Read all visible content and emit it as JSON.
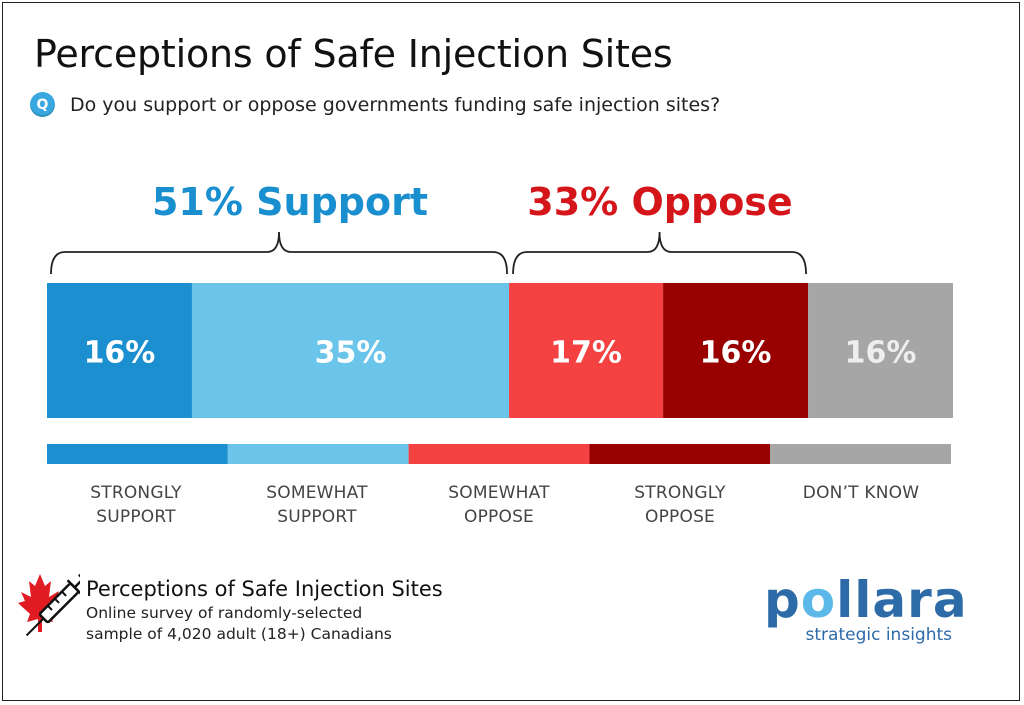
{
  "header": {
    "title": "Perceptions of Safe Injection Sites",
    "question_badge": "Q",
    "question": "Do you support or oppose governments funding safe injection sites?"
  },
  "summary": {
    "support": "51% Support",
    "oppose": "33% Oppose"
  },
  "colors": {
    "strongly_support": "#1b8fd0",
    "somewhat_support": "#6bc4ea",
    "somewhat_oppose": "#f44141",
    "strongly_oppose": "#990000",
    "dont_know": "#a6a6a6",
    "support_text": "#1a8fcf",
    "oppose_text": "#d4161b"
  },
  "chart_data": {
    "type": "bar",
    "orientation": "horizontal-stacked",
    "title": "Perceptions of Safe Injection Sites",
    "categories": [
      "STRONGLY SUPPORT",
      "SOMEWHAT SUPPORT",
      "SOMEWHAT OPPOSE",
      "STRONGLY OPPOSE",
      "DON'T KNOW"
    ],
    "values": [
      16,
      35,
      17,
      16,
      16
    ],
    "data_labels": [
      "16%",
      "35%",
      "17%",
      "16%",
      "16%"
    ],
    "legend": [
      {
        "line1": "STRONGLY",
        "line2": "SUPPORT"
      },
      {
        "line1": "SOMEWHAT",
        "line2": "SUPPORT"
      },
      {
        "line1": "SOMEWHAT",
        "line2": "OPPOSE"
      },
      {
        "line1": "STRONGLY",
        "line2": "OPPOSE"
      },
      {
        "line1": "DON’T KNOW",
        "line2": ""
      }
    ],
    "groups": [
      {
        "label": "51% Support",
        "from": 0,
        "to": 1
      },
      {
        "label": "33% Oppose",
        "from": 2,
        "to": 3
      }
    ]
  },
  "source": {
    "title": "Perceptions of Safe Injection Sites",
    "line1": "Online survey of randomly-selected",
    "line2": "sample of 4,020 adult (18+) Canadians"
  },
  "brand": {
    "name_part1": "p",
    "name_mark": "o",
    "name_part2": "llara",
    "tagline": "strategic insights"
  }
}
